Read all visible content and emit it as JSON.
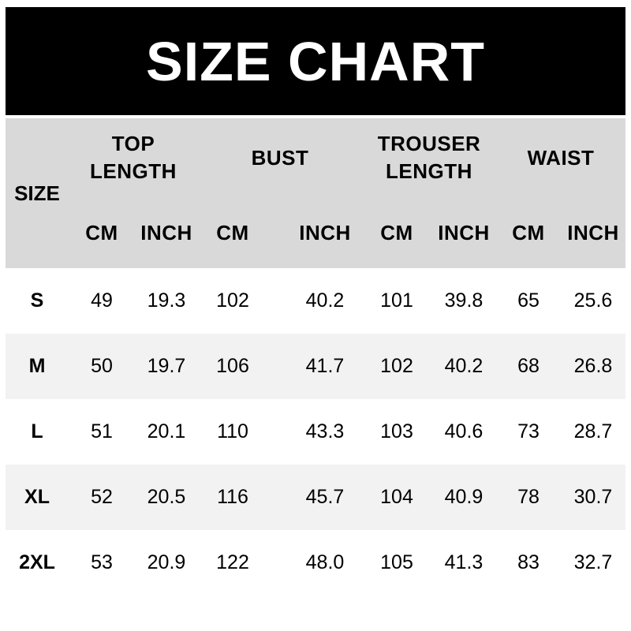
{
  "colors": {
    "banner_bg": "#000000",
    "banner_text": "#ffffff",
    "header_bg": "#d9d9d9",
    "row_alt_bg": "#f2f2f2",
    "text": "#000000",
    "page_bg": "#ffffff"
  },
  "chart_data": {
    "type": "table",
    "title": "SIZE CHART",
    "size_label": "SIZE",
    "groups": [
      {
        "label": "TOP LENGTH",
        "line1": "TOP",
        "line2": "LENGTH"
      },
      {
        "label": "BUST",
        "line1": "BUST",
        "line2": ""
      },
      {
        "label": "TROUSER LENGTH",
        "line1": "TROUSER",
        "line2": "LENGTH"
      },
      {
        "label": "WAIST",
        "line1": "WAIST",
        "line2": ""
      }
    ],
    "units": [
      "CM",
      "INCH",
      "CM",
      "INCH",
      "CM",
      "INCH",
      "CM",
      "INCH"
    ],
    "columns": [
      "SIZE",
      "TOP LENGTH CM",
      "TOP LENGTH INCH",
      "BUST CM",
      "BUST INCH",
      "TROUSER LENGTH CM",
      "TROUSER LENGTH INCH",
      "WAIST CM",
      "WAIST INCH"
    ],
    "rows": [
      {
        "size": "S",
        "values": [
          "49",
          "19.3",
          "102",
          "40.2",
          "101",
          "39.8",
          "65",
          "25.6"
        ]
      },
      {
        "size": "M",
        "values": [
          "50",
          "19.7",
          "106",
          "41.7",
          "102",
          "40.2",
          "68",
          "26.8"
        ]
      },
      {
        "size": "L",
        "values": [
          "51",
          "20.1",
          "110",
          "43.3",
          "103",
          "40.6",
          "73",
          "28.7"
        ]
      },
      {
        "size": "XL",
        "values": [
          "52",
          "20.5",
          "116",
          "45.7",
          "104",
          "40.9",
          "78",
          "30.7"
        ]
      },
      {
        "size": "2XL",
        "values": [
          "53",
          "20.9",
          "122",
          "48.0",
          "105",
          "41.3",
          "83",
          "32.7"
        ]
      }
    ]
  }
}
